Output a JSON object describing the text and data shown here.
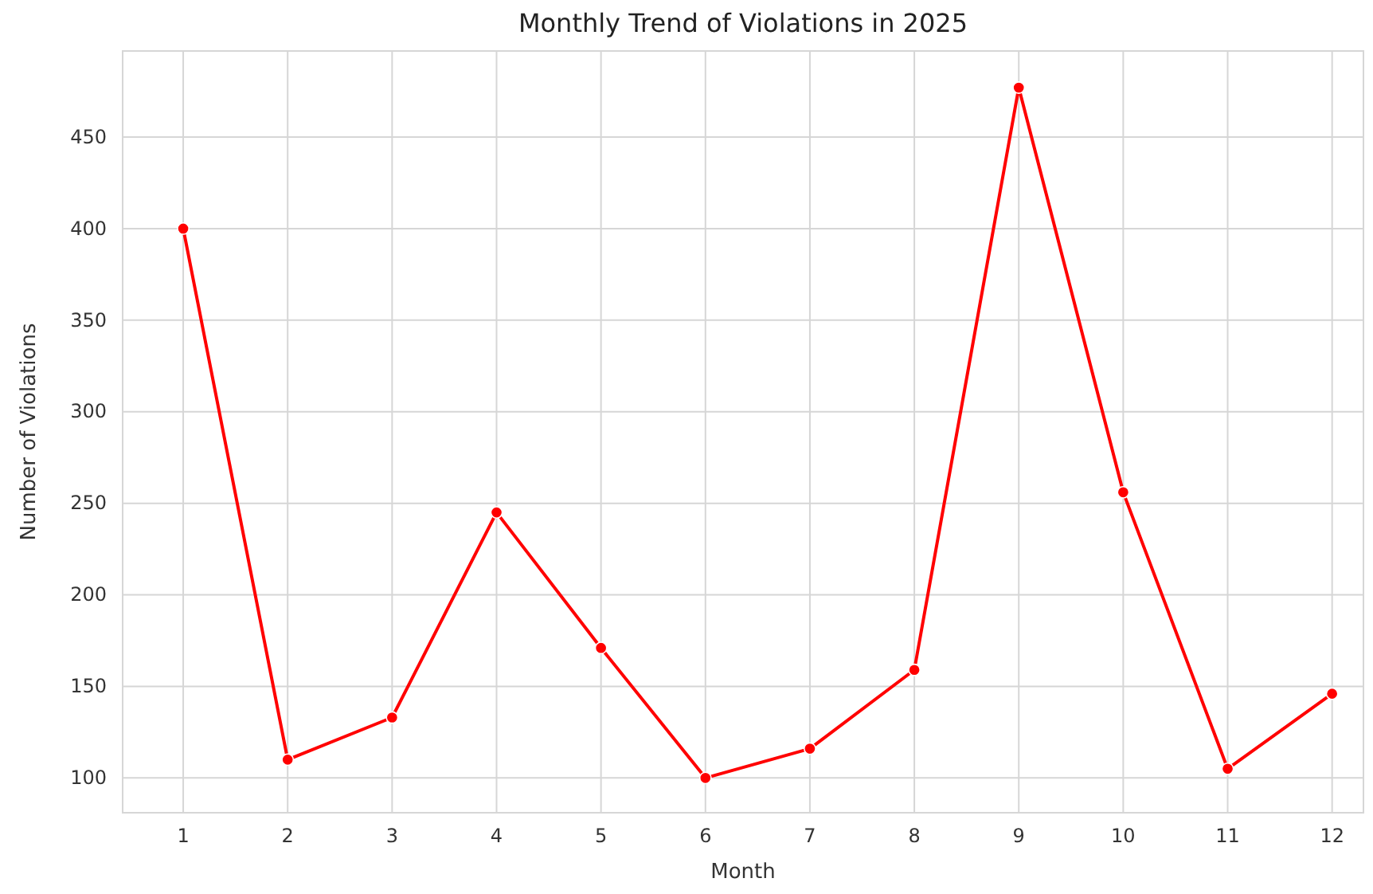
{
  "chart_data": {
    "type": "line",
    "title": "Monthly Trend of Violations in 2025",
    "xlabel": "Month",
    "ylabel": "Number of Violations",
    "x": [
      1,
      2,
      3,
      4,
      5,
      6,
      7,
      8,
      9,
      10,
      11,
      12
    ],
    "series": [
      {
        "color": "#ff0000",
        "values": [
          400,
          110,
          133,
          245,
          171,
          100,
          116,
          159,
          477,
          256,
          105,
          146
        ]
      }
    ],
    "xlim": [
      0.42,
      12.3
    ],
    "xticks": [
      1,
      2,
      3,
      4,
      5,
      6,
      7,
      8,
      9,
      10,
      11,
      12
    ],
    "ylim": [
      81,
      497
    ],
    "yticks": [
      100,
      150,
      200,
      250,
      300,
      350,
      400,
      450
    ],
    "grid": true,
    "marker": "circle",
    "line_style": "solid"
  }
}
